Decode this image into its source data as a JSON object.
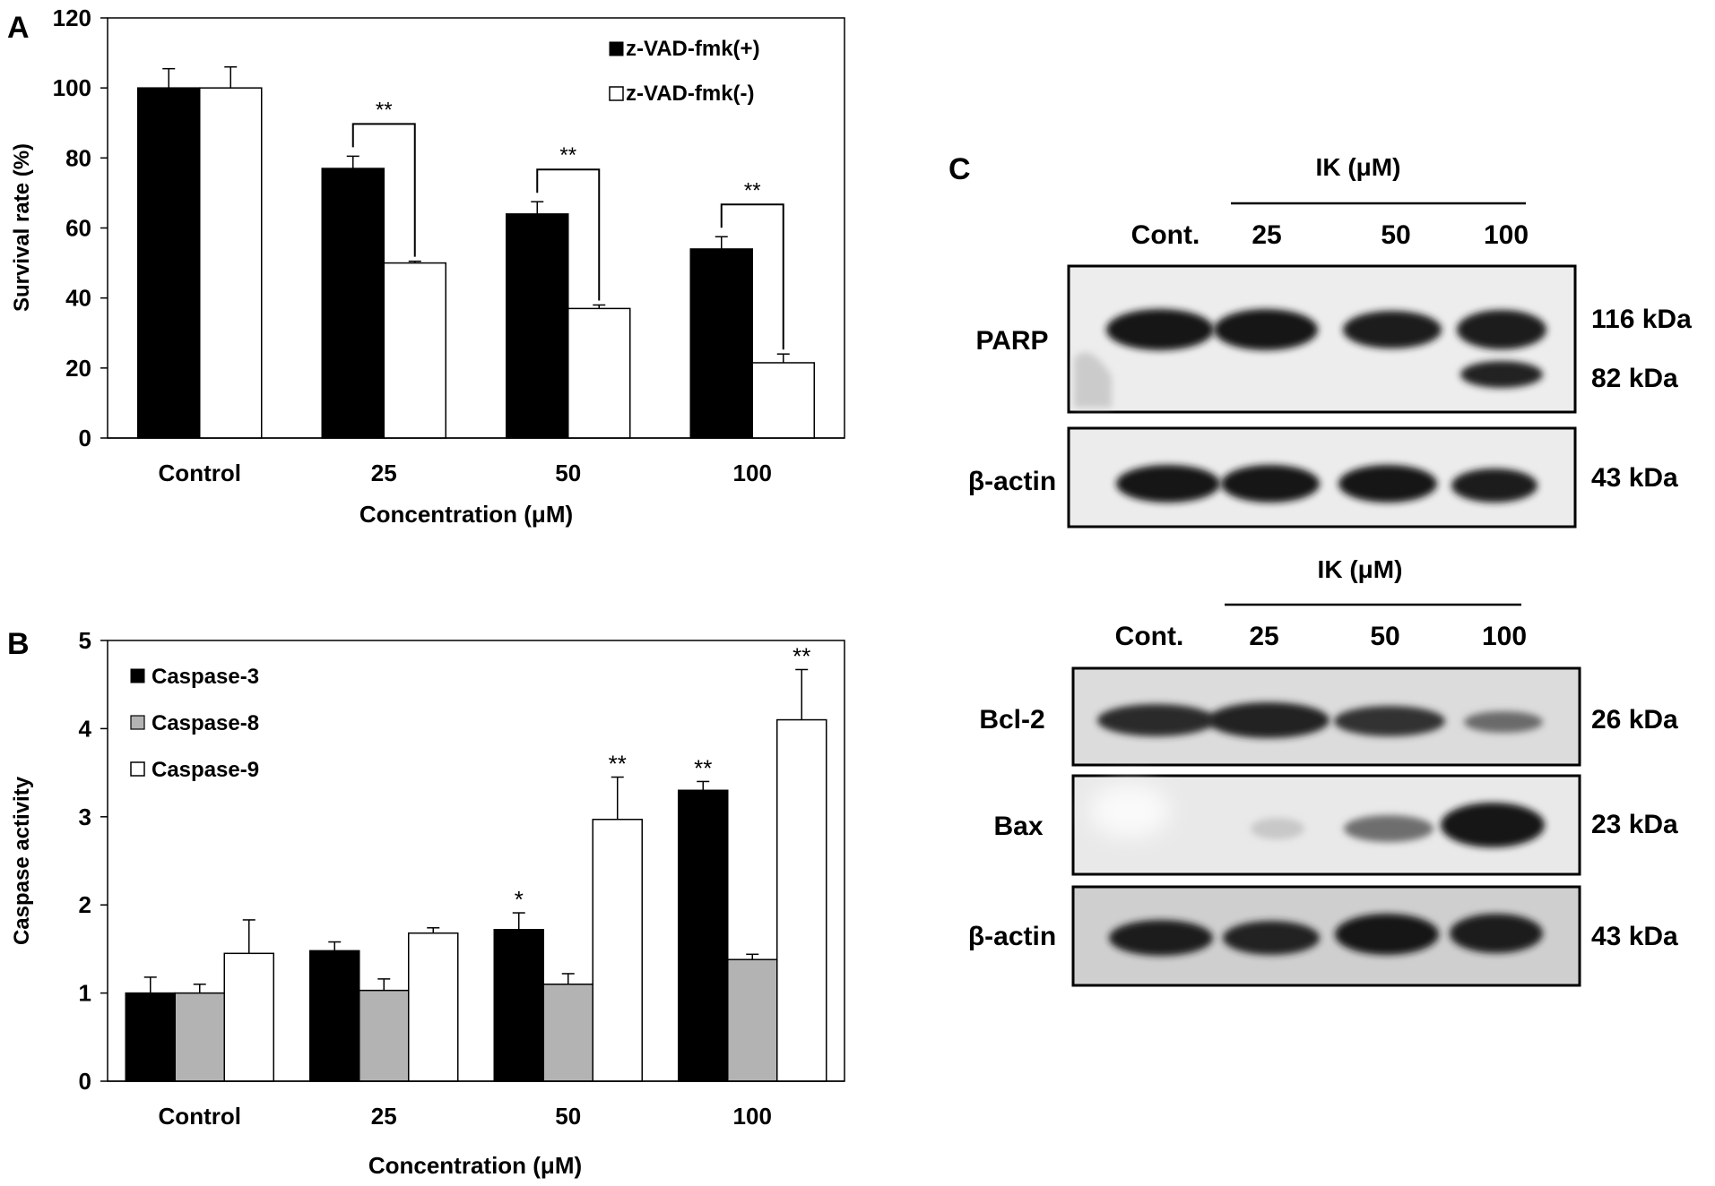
{
  "panel_labels": {
    "a": "A",
    "b": "B",
    "c": "C"
  },
  "chart_data": [
    {
      "type": "bar",
      "panel": "A",
      "categories": [
        "Control",
        "25",
        "50",
        "100"
      ],
      "series": [
        {
          "name": "z-VAD-fmk(+)",
          "values": [
            100,
            77,
            64,
            54
          ],
          "errors": [
            5.5,
            3.5,
            3.5,
            3.5
          ],
          "color": "#000000"
        },
        {
          "name": "z-VAD-fmk(-)",
          "values": [
            100,
            50,
            37,
            21.5
          ],
          "errors": [
            6,
            0.5,
            1,
            2.5
          ],
          "color": "#ffffff"
        }
      ],
      "significance": [
        {
          "category": "25",
          "label": "**"
        },
        {
          "category": "50",
          "label": "**"
        },
        {
          "category": "100",
          "label": "**"
        }
      ],
      "xlabel": "Concentration (μM)",
      "ylabel": "Survival rate (%)",
      "ylim": [
        0,
        120
      ],
      "yticks": [
        "0",
        "20",
        "40",
        "60",
        "80",
        "100",
        "120"
      ],
      "legend_position": "top-right",
      "grid": false
    },
    {
      "type": "bar",
      "panel": "B",
      "categories": [
        "Control",
        "25",
        "50",
        "100"
      ],
      "series": [
        {
          "name": "Caspase-3",
          "values": [
            1.0,
            1.48,
            1.72,
            3.3
          ],
          "errors": [
            0.18,
            0.1,
            0.19,
            0.1
          ],
          "color": "#000000"
        },
        {
          "name": "Caspase-8",
          "values": [
            1.0,
            1.03,
            1.1,
            1.38
          ],
          "errors": [
            0.1,
            0.13,
            0.12,
            0.06
          ],
          "color": "#b3b3b3"
        },
        {
          "name": "Caspase-9",
          "values": [
            1.45,
            1.68,
            2.97,
            4.1
          ],
          "errors": [
            0.38,
            0.06,
            0.48,
            0.57
          ],
          "color": "#ffffff"
        }
      ],
      "annotations": [
        {
          "category": "50",
          "series": "Caspase-3",
          "label": "*"
        },
        {
          "category": "50",
          "series": "Caspase-9",
          "label": "**"
        },
        {
          "category": "100",
          "series": "Caspase-3",
          "label": "**"
        },
        {
          "category": "100",
          "series": "Caspase-9",
          "label": "**"
        }
      ],
      "xlabel": "Concentration (μM)",
      "ylabel": "Caspase activity",
      "ylim": [
        0,
        5
      ],
      "yticks": [
        "0",
        "1",
        "2",
        "3",
        "4",
        "5"
      ],
      "legend_position": "top-left",
      "grid": false
    }
  ],
  "western_blot": {
    "top": {
      "treatment": "IK (μM)",
      "lanes": [
        "Cont.",
        "25",
        "50",
        "100"
      ],
      "rows": [
        {
          "protein": "PARP",
          "sizes": [
            "116 kDa",
            "82 kDa"
          ]
        },
        {
          "protein": "β-actin",
          "sizes": [
            "43 kDa"
          ]
        }
      ]
    },
    "bottom": {
      "treatment": "IK (μM)",
      "lanes": [
        "Cont.",
        "25",
        "50",
        "100"
      ],
      "rows": [
        {
          "protein": "Bcl-2",
          "sizes": [
            "26 kDa"
          ]
        },
        {
          "protein": "Bax",
          "sizes": [
            "23 kDa"
          ]
        },
        {
          "protein": "β-actin",
          "sizes": [
            "43 kDa"
          ]
        }
      ]
    }
  }
}
